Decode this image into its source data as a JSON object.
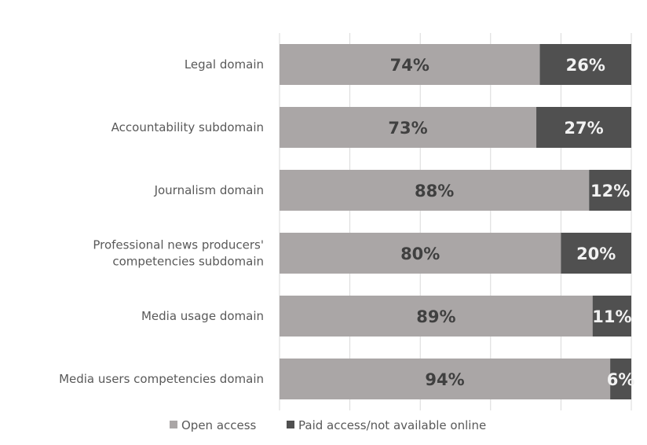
{
  "chart_data": {
    "type": "bar",
    "orientation": "horizontal",
    "stacked": true,
    "percent_stacked": true,
    "categories": [
      "Legal domain",
      "Accountability subdomain",
      "Journalism domain",
      [
        "Professional news producers'",
        "competencies subdomain"
      ],
      "Media usage domain",
      "Media users competencies domain"
    ],
    "series": [
      {
        "name": "Open access",
        "values": [
          74,
          73,
          88,
          80,
          89,
          94
        ],
        "labels": [
          "74%",
          "73%",
          "88%",
          "80%",
          "89%",
          "94%"
        ],
        "color": "#aaa6a6",
        "label_color": "#404040"
      },
      {
        "name": "Paid access/not available online",
        "values": [
          26,
          27,
          12,
          20,
          11,
          6
        ],
        "labels": [
          "26%",
          "27%",
          "12%",
          "20%",
          "11%",
          "6%"
        ],
        "color": "#505050",
        "label_color": "#f2f2f2"
      }
    ],
    "xlim": [
      0,
      100
    ],
    "grid": "vertical",
    "legend_position": "bottom"
  }
}
